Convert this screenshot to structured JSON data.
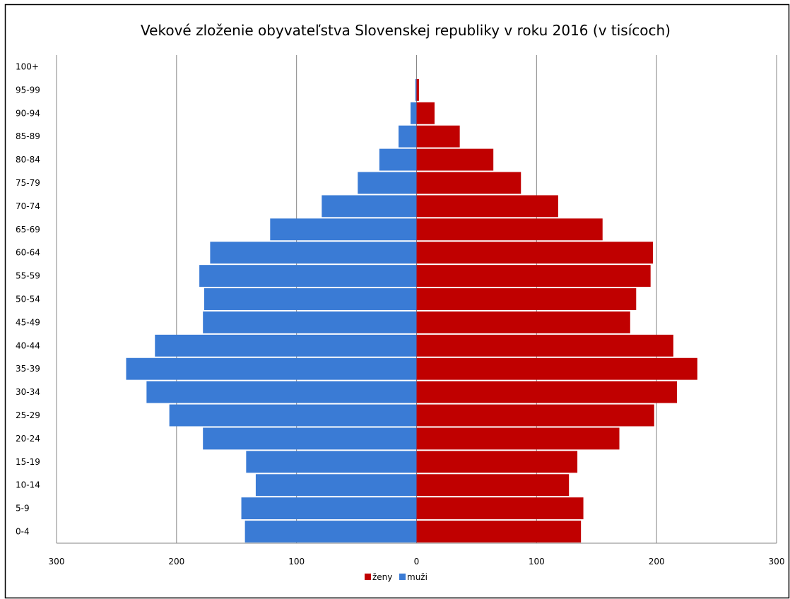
{
  "chart_data": {
    "type": "bar",
    "orientation": "horizontal",
    "title": "Vekové zloženie obyvateľstva Slovenskej republiky v roku 2016 (v tisícoch)",
    "xlabel": "",
    "ylabel": "",
    "categories": [
      "0-4",
      "5-9",
      "10-14",
      "15-19",
      "20-24",
      "25-29",
      "30-34",
      "35-39",
      "40-44",
      "45-49",
      "50-54",
      "55-59",
      "60-64",
      "65-69",
      "70-74",
      "75-79",
      "80-84",
      "85-89",
      "90-94",
      "95-99",
      "100+"
    ],
    "series": [
      {
        "name": "ženy",
        "color": "#c00000",
        "side": "right",
        "values": [
          137,
          139,
          127,
          134,
          169,
          198,
          217,
          234,
          214,
          178,
          183,
          195,
          197,
          155,
          118,
          87,
          64,
          36,
          15,
          2,
          0
        ]
      },
      {
        "name": "muži",
        "color": "#3a7bd5",
        "side": "left",
        "values": [
          143,
          146,
          134,
          142,
          178,
          206,
          225,
          242,
          218,
          178,
          177,
          181,
          172,
          122,
          79,
          49,
          31,
          15,
          5,
          1,
          0
        ]
      }
    ],
    "xlim": [
      -300,
      300
    ],
    "xticks": [
      {
        "value": -300,
        "label": "300"
      },
      {
        "value": -200,
        "label": "200"
      },
      {
        "value": -100,
        "label": "100"
      },
      {
        "value": 0,
        "label": "0"
      },
      {
        "value": 100,
        "label": "100"
      },
      {
        "value": 200,
        "label": "200"
      },
      {
        "value": 300,
        "label": "300"
      }
    ],
    "grid": true,
    "legend": "bottom-center"
  }
}
